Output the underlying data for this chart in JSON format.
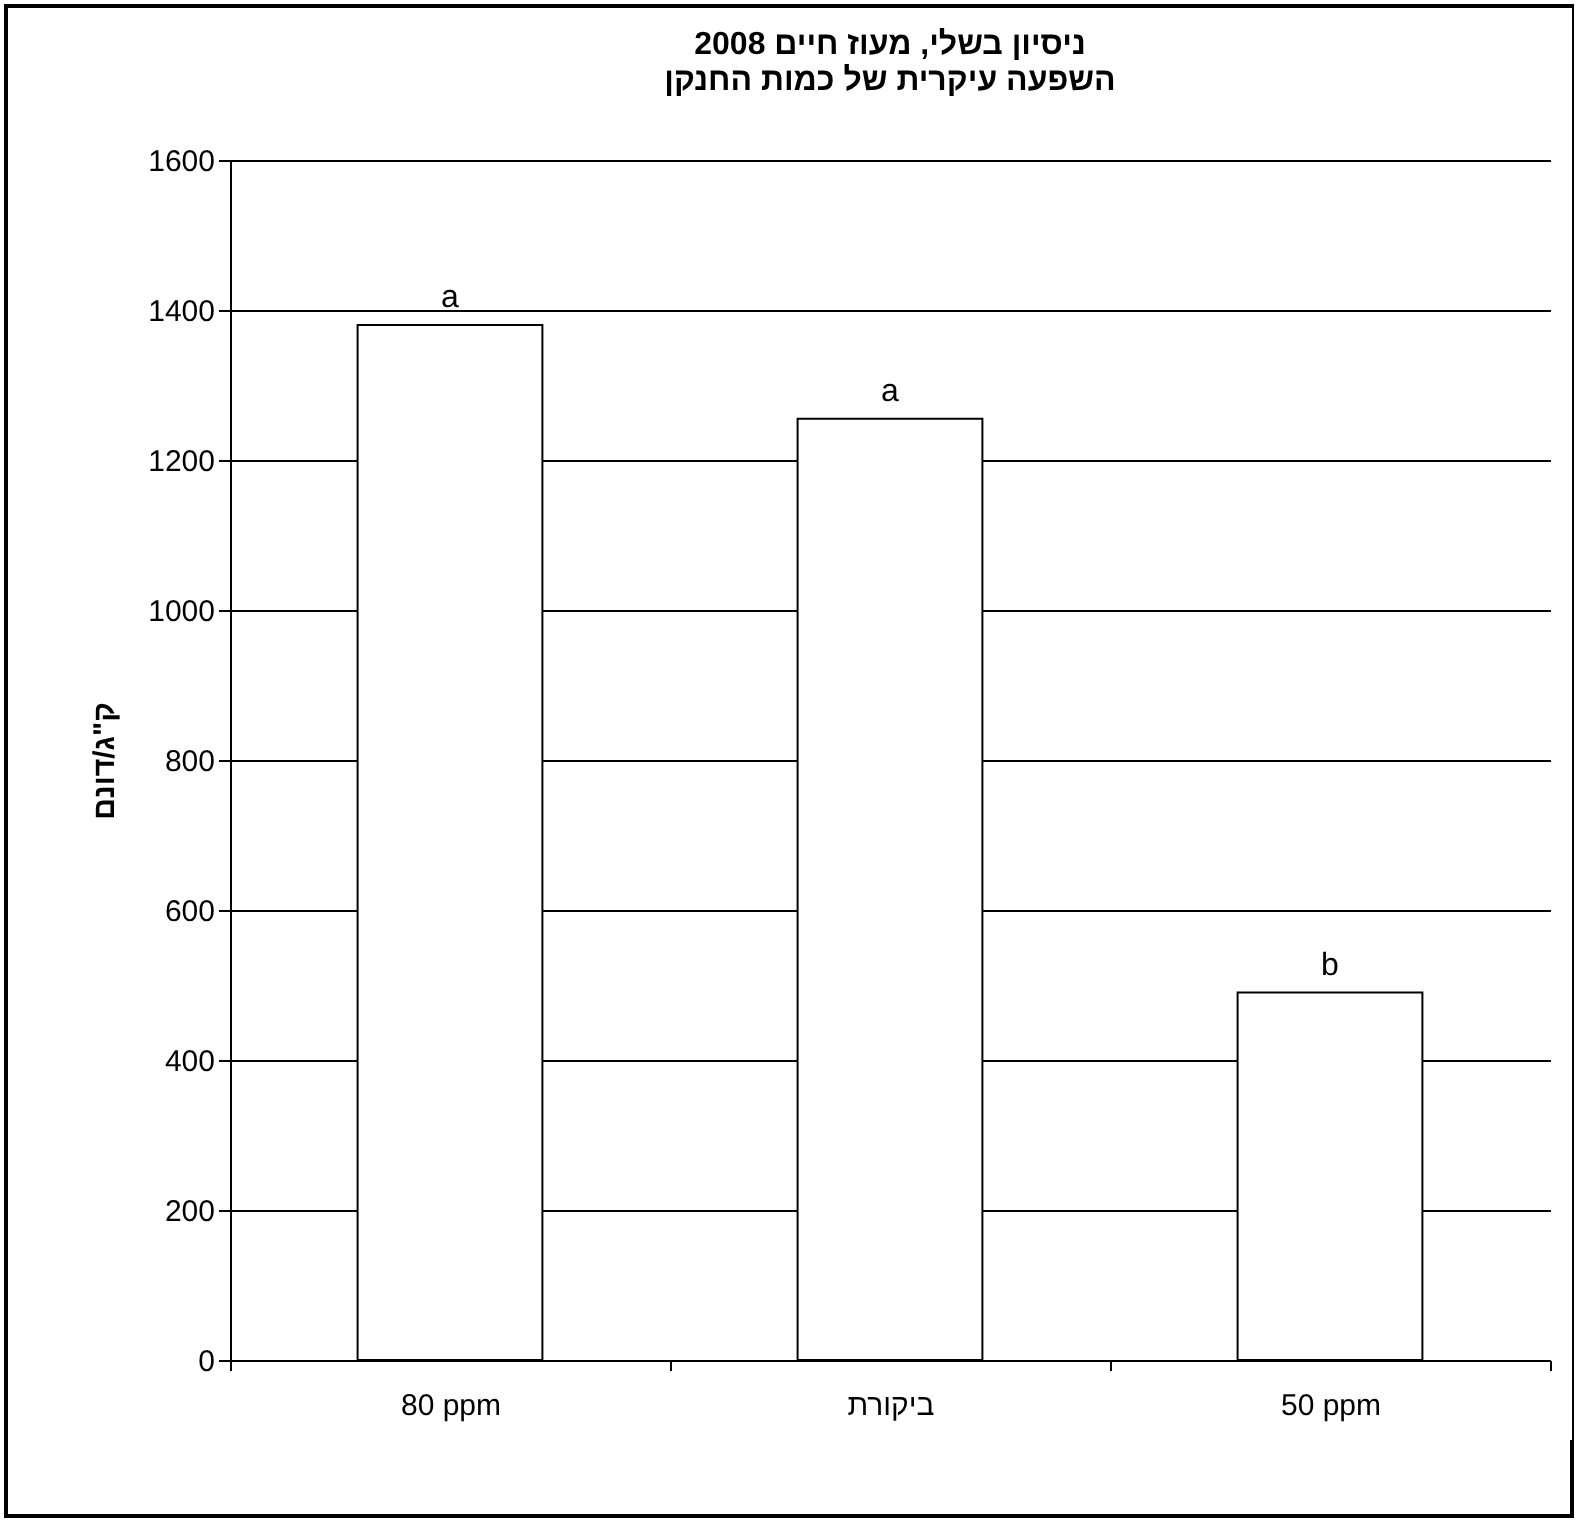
{
  "chart_data": {
    "type": "bar",
    "title": [
      "ניסיון בשלי, מעוז חיים 2008",
      "השפעה עיקרית של כמות החנקן"
    ],
    "ylabel": "ק\"ג/דונם",
    "categories": [
      "80 ppm",
      "ביקורת",
      "50 ppm"
    ],
    "values": [
      1380,
      1255,
      490
    ],
    "color": "#ffffff",
    "ylim": [
      0,
      1600
    ],
    "yticks": [
      0,
      200,
      400,
      600,
      800,
      1000,
      1200,
      1400,
      1600
    ],
    "grid": "y",
    "annotations": [
      {
        "text": "a",
        "x": "80 ppm",
        "y": 1380
      },
      {
        "text": "a",
        "x": "ביקורת",
        "y": 1255
      },
      {
        "text": "b",
        "x": "50 ppm",
        "y": 490
      }
    ]
  }
}
